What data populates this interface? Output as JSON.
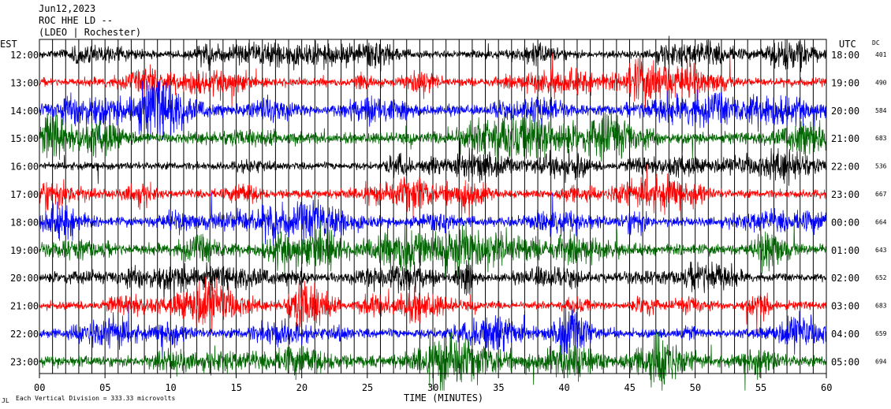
{
  "header": {
    "date": "Jun12,2023",
    "station": "ROC HHE LD --",
    "network": "(LDEO | Rochester)"
  },
  "axes": {
    "left_timezone": "EST",
    "right_timezone": "UTC",
    "dc_label": "DC",
    "xlabel": "TIME (MINUTES)",
    "footer_mark": "JL",
    "footer_note": "Each Vertical Division =  333.33 microvolts"
  },
  "chart_data": {
    "type": "line",
    "title": "",
    "xlabel": "TIME (MINUTES)",
    "xlim": [
      0,
      60
    ],
    "x_ticks": [
      "00",
      "05",
      "10",
      "15",
      "20",
      "25",
      "30",
      "35",
      "40",
      "45",
      "50",
      "55",
      "60"
    ],
    "grid": "vertical minute lines",
    "rows": [
      {
        "est": "12:00",
        "utc": "18:00",
        "dc": "401",
        "color": "#000000",
        "amplitude": 0.45
      },
      {
        "est": "13:00",
        "utc": "19:00",
        "dc": "490",
        "color": "#ff0000",
        "amplitude": 0.5
      },
      {
        "est": "14:00",
        "utc": "20:00",
        "dc": "584",
        "color": "#0000ff",
        "amplitude": 0.6
      },
      {
        "est": "15:00",
        "utc": "21:00",
        "dc": "683",
        "color": "#006400",
        "amplitude": 0.65
      },
      {
        "est": "16:00",
        "utc": "22:00",
        "dc": "536",
        "color": "#000000",
        "amplitude": 0.45
      },
      {
        "est": "17:00",
        "utc": "23:00",
        "dc": "667",
        "color": "#ff0000",
        "amplitude": 0.5
      },
      {
        "est": "18:00",
        "utc": "00:00",
        "dc": "664",
        "color": "#0000ff",
        "amplitude": 0.55
      },
      {
        "est": "19:00",
        "utc": "01:00",
        "dc": "643",
        "color": "#006400",
        "amplitude": 0.65
      },
      {
        "est": "20:00",
        "utc": "02:00",
        "dc": "652",
        "color": "#000000",
        "amplitude": 0.45
      },
      {
        "est": "21:00",
        "utc": "03:00",
        "dc": "683",
        "color": "#ff0000",
        "amplitude": 0.5
      },
      {
        "est": "22:00",
        "utc": "04:00",
        "dc": "659",
        "color": "#0000ff",
        "amplitude": 0.55
      },
      {
        "est": "23:00",
        "utc": "05:00",
        "dc": "694",
        "color": "#006400",
        "amplitude": 0.65
      }
    ]
  }
}
